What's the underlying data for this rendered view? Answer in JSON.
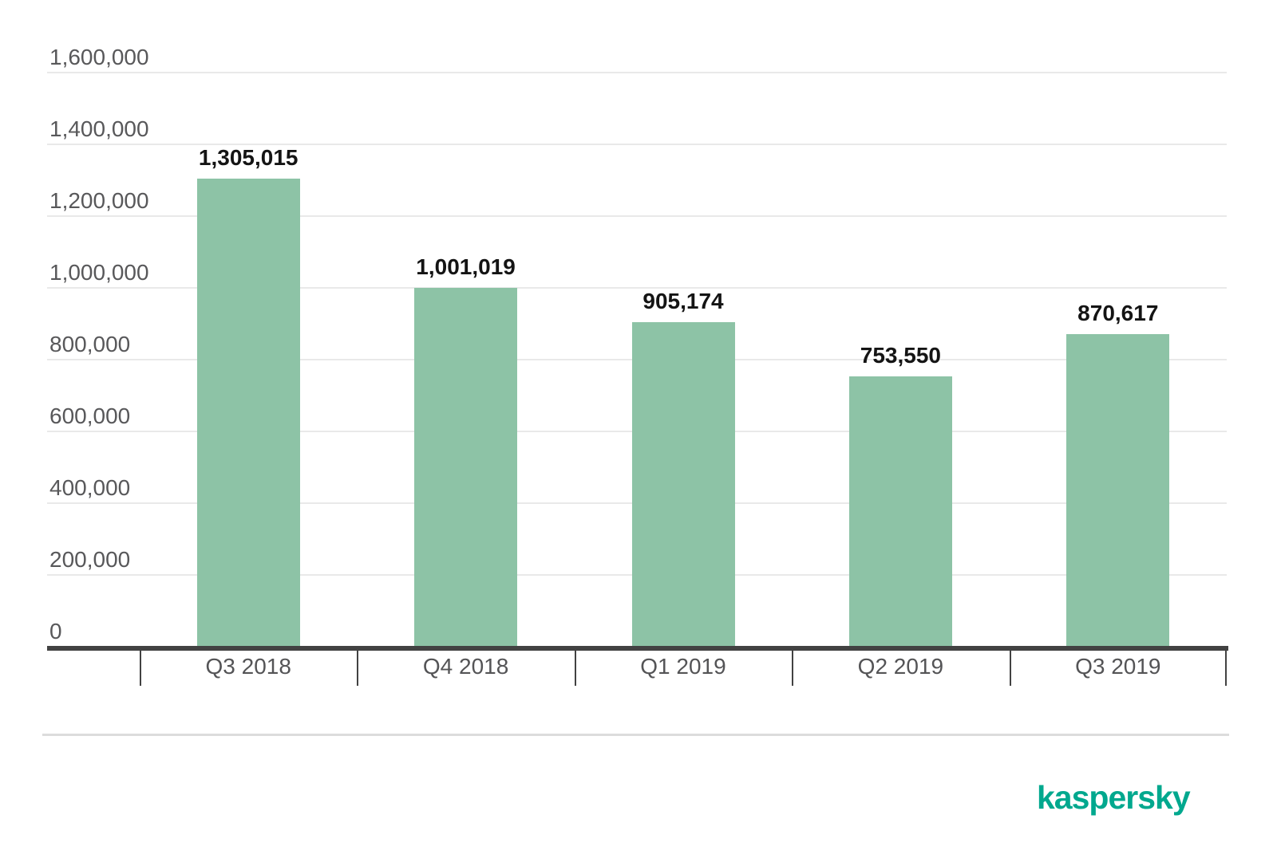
{
  "chart_data": {
    "type": "bar",
    "categories": [
      "Q3 2018",
      "Q4 2018",
      "Q1 2019",
      "Q2 2019",
      "Q3 2019"
    ],
    "values": [
      1305015,
      1001019,
      905174,
      753550,
      870617
    ],
    "value_labels": [
      "1,305,015",
      "1,001,019",
      "905,174",
      "753,550",
      "870,617"
    ],
    "title": "",
    "xlabel": "",
    "ylabel": "",
    "ylim": [
      0,
      1600000
    ],
    "ytick_values": [
      0,
      200000,
      400000,
      600000,
      800000,
      1000000,
      1200000,
      1400000,
      1600000
    ],
    "ytick_labels": [
      "0",
      "200,000",
      "400,000",
      "600,000",
      "800,000",
      "1,000,000",
      "1,200,000",
      "1,400,000",
      "1,600,000"
    ],
    "grid": true,
    "legend_position": "none",
    "bar_color": "#8DC3A6",
    "gridline_color": "#e9e9e9",
    "axis_color": "#424242",
    "ylabel_color": "#58585a",
    "xlabel_color": "#545456",
    "value_label_color": "#141414"
  },
  "footer": {
    "divider_color": "#dcdcdc"
  },
  "branding": {
    "logo_text": "kaspersky",
    "logo_color": "#00A88E"
  }
}
